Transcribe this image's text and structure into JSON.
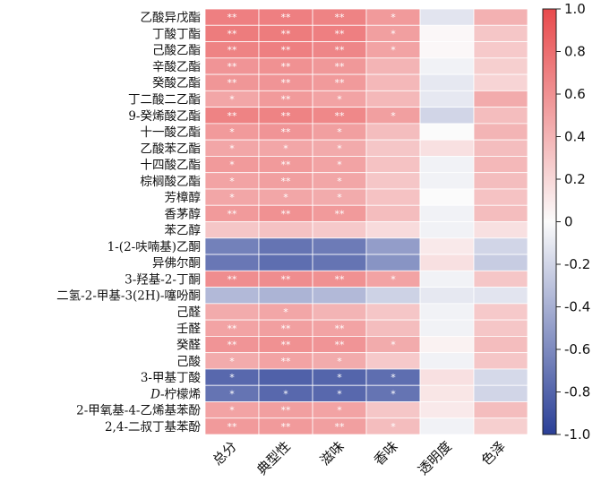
{
  "chart_data": {
    "type": "heatmap",
    "rows": [
      "乙酸异戊酯",
      "丁酸丁酯",
      "己酸乙酯",
      "辛酸乙酯",
      "癸酸乙酯",
      "丁二酸二乙酯",
      "9-癸烯酸乙酯",
      "十一酸乙酯",
      "乙酸苯乙酯",
      "十四酸乙酯",
      "棕榈酸乙酯",
      "芳樟醇",
      "香茅醇",
      "苯乙醇",
      "1-(2-呋喃基)乙酮",
      "异佛尔酮",
      "3-羟基-2-丁酮",
      "二氢-2-甲基-3(2H)-噻吩酮",
      "己醛",
      "壬醛",
      "癸醛",
      "己酸",
      "3-甲基丁酸",
      "D-柠檬烯",
      "2-甲氧基-4-乙烯基苯酚",
      "2,4-二叔丁基苯酚"
    ],
    "columns": [
      "总分",
      "典型性",
      "滋味",
      "香味",
      "透明度",
      "色泽"
    ],
    "values": [
      [
        0.7,
        0.7,
        0.68,
        0.55,
        -0.12,
        0.42
      ],
      [
        0.72,
        0.72,
        0.7,
        0.52,
        0.02,
        0.3
      ],
      [
        0.68,
        0.7,
        0.66,
        0.5,
        0.02,
        0.28
      ],
      [
        0.58,
        0.6,
        0.56,
        0.4,
        -0.05,
        0.25
      ],
      [
        0.57,
        0.58,
        0.55,
        0.38,
        -0.1,
        0.22
      ],
      [
        0.48,
        0.55,
        0.5,
        0.38,
        -0.1,
        0.45
      ],
      [
        0.68,
        0.68,
        0.65,
        0.52,
        -0.2,
        0.35
      ],
      [
        0.55,
        0.58,
        0.52,
        0.35,
        0.0,
        0.4
      ],
      [
        0.48,
        0.48,
        0.46,
        0.3,
        0.15,
        0.35
      ],
      [
        0.55,
        0.55,
        0.5,
        0.32,
        -0.05,
        0.38
      ],
      [
        0.5,
        0.52,
        0.48,
        0.3,
        -0.05,
        0.35
      ],
      [
        0.48,
        0.48,
        0.45,
        0.32,
        0.0,
        0.32
      ],
      [
        0.55,
        0.6,
        0.55,
        0.35,
        -0.05,
        0.35
      ],
      [
        0.3,
        0.32,
        0.28,
        0.18,
        -0.05,
        0.15
      ],
      [
        -0.65,
        -0.72,
        -0.68,
        -0.5,
        0.1,
        -0.2
      ],
      [
        -0.7,
        -0.75,
        -0.72,
        -0.55,
        0.15,
        -0.25
      ],
      [
        0.62,
        0.62,
        0.6,
        0.5,
        -0.05,
        0.3
      ],
      [
        -0.35,
        -0.38,
        -0.35,
        -0.22,
        -0.1,
        -0.12
      ],
      [
        0.45,
        0.48,
        0.4,
        0.3,
        -0.05,
        0.28
      ],
      [
        0.5,
        0.52,
        0.5,
        0.35,
        -0.05,
        0.3
      ],
      [
        0.58,
        0.6,
        0.58,
        0.45,
        0.05,
        0.35
      ],
      [
        0.45,
        0.5,
        0.45,
        0.28,
        -0.05,
        0.3
      ],
      [
        -0.78,
        -0.82,
        -0.8,
        -0.75,
        0.15,
        -0.18
      ],
      [
        -0.72,
        -0.78,
        -0.78,
        -0.72,
        0.12,
        -0.2
      ],
      [
        0.5,
        0.52,
        0.5,
        0.3,
        0.1,
        0.35
      ],
      [
        0.55,
        0.55,
        0.52,
        0.35,
        -0.05,
        0.25
      ]
    ],
    "significance": [
      [
        "**",
        "**",
        "**",
        "*",
        "",
        ""
      ],
      [
        "**",
        "**",
        "**",
        "*",
        "",
        ""
      ],
      [
        "**",
        "**",
        "**",
        "*",
        "",
        ""
      ],
      [
        "**",
        "**",
        "**",
        "",
        "",
        ""
      ],
      [
        "**",
        "**",
        "**",
        "",
        "",
        ""
      ],
      [
        "*",
        "**",
        "*",
        "",
        "",
        ""
      ],
      [
        "**",
        "**",
        "**",
        "*",
        "",
        ""
      ],
      [
        "*",
        "**",
        "*",
        "",
        "",
        ""
      ],
      [
        "*",
        "*",
        "*",
        "",
        "",
        ""
      ],
      [
        "*",
        "**",
        "*",
        "",
        "",
        ""
      ],
      [
        "*",
        "**",
        "*",
        "",
        "",
        ""
      ],
      [
        "*",
        "*",
        "*",
        "",
        "",
        ""
      ],
      [
        "**",
        "**",
        "**",
        "",
        "",
        ""
      ],
      [
        "",
        "",
        "",
        "",
        "",
        ""
      ],
      [
        "",
        "",
        "",
        "",
        "",
        ""
      ],
      [
        "",
        "",
        "",
        "",
        "",
        ""
      ],
      [
        "**",
        "**",
        "**",
        "*",
        "",
        ""
      ],
      [
        "",
        "",
        "",
        "",
        "",
        ""
      ],
      [
        "",
        "*",
        "",
        "",
        "",
        ""
      ],
      [
        "**",
        "**",
        "**",
        "",
        "",
        ""
      ],
      [
        "**",
        "**",
        "**",
        "*",
        "",
        ""
      ],
      [
        "*",
        "**",
        "*",
        "",
        "",
        ""
      ],
      [
        "*",
        "",
        "*",
        "*",
        "",
        ""
      ],
      [
        "*",
        "*",
        "*",
        "*",
        "",
        ""
      ],
      [
        "*",
        "**",
        "*",
        "",
        "",
        ""
      ],
      [
        "**",
        "**",
        "**",
        "*",
        "",
        ""
      ]
    ],
    "colorbar": {
      "min": -1.0,
      "max": 1.0,
      "ticks": [
        "1.0",
        "0.8",
        "0.6",
        "0.4",
        "0.2",
        "0",
        "-0.2",
        "-0.4",
        "-0.6",
        "-0.8",
        "-1.0"
      ],
      "low_color": "#2a3f97",
      "mid_color": "#fbfbfb",
      "high_color": "#e84a4c"
    }
  }
}
